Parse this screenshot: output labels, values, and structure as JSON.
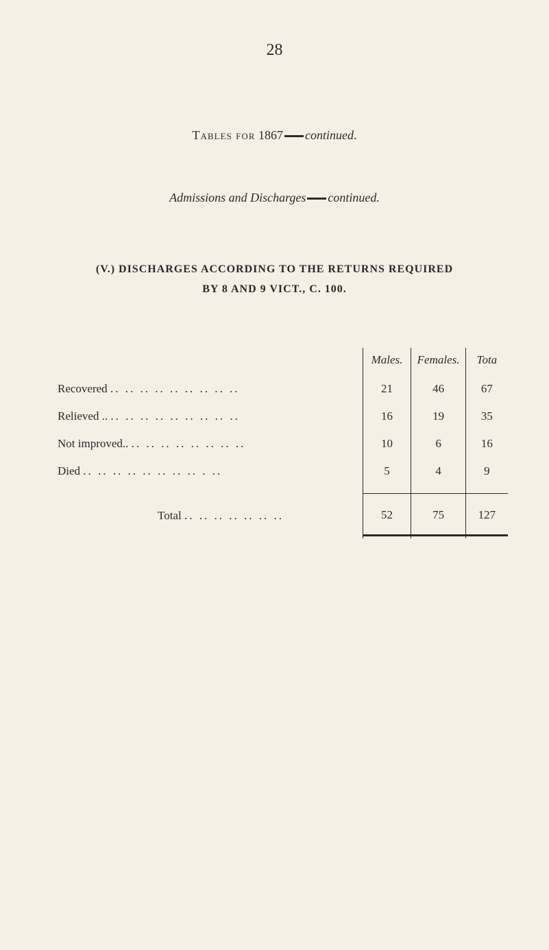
{
  "page_number": "28",
  "corner_mark": "⁂",
  "title_caps": "Tables for",
  "title_year": "1867",
  "title_continued": "continued",
  "subtitle_prefix": "Admissions and Discharges",
  "subtitle_continued": "continued",
  "section_heading_line1": "(V.) DISCHARGES ACCORDING TO THE RETURNS REQUIRED",
  "section_heading_line2": "BY 8 AND 9 VICT., C. 100.",
  "table": {
    "headers": {
      "males": "Males.",
      "females": "Females.",
      "total": "Tota"
    },
    "rows": [
      {
        "label": "Recovered",
        "dots": ".. .. .. .. .. .. .. .. ..",
        "males": "21",
        "females": "46",
        "total": "67"
      },
      {
        "label": "Relieved ..",
        "dots": ".. .. .. .. .. .. .. .. ..",
        "males": "16",
        "females": "19",
        "total": "35"
      },
      {
        "label": "Not improved..",
        "dots": ".. .. .. .. .. .. .. ..",
        "males": "10",
        "females": "6",
        "total": "16"
      },
      {
        "label": "Died",
        "dots": ".. .. .. .. .. .. .. .. . ..",
        "males": "5",
        "females": "4",
        "total": "9"
      }
    ],
    "total_row": {
      "label": "Total",
      "dots": ".. .. .. .. .. .. ..",
      "males": "52",
      "females": "75",
      "total": "127"
    }
  },
  "colors": {
    "background": "#f5f0e6",
    "text": "#2a2a2a",
    "border": "#2a2a2a"
  },
  "typography": {
    "body_font": "Times New Roman, Georgia, serif",
    "page_number_size": 24,
    "title_size": 18,
    "section_size": 16,
    "table_size": 17
  }
}
